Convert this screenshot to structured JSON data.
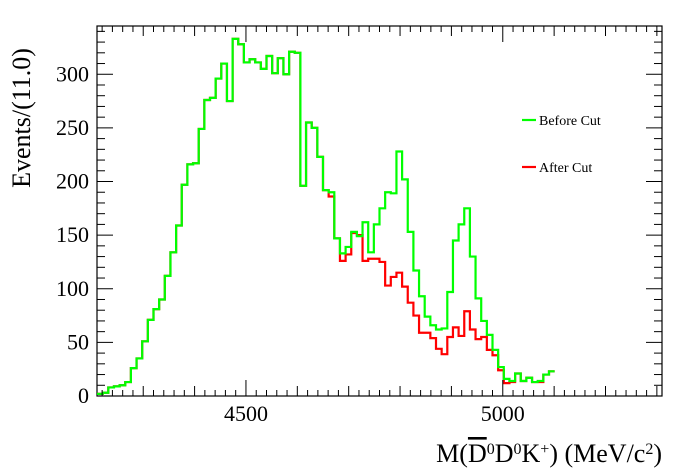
{
  "chart_data": {
    "type": "line",
    "ylabel": "Events/(11.0)",
    "xlabel_parts": {
      "prefix": "M(",
      "bar_symbol": "D",
      "bar_sup": "0",
      "sym2": "D",
      "sym2_sup": "0",
      "sym3": "K",
      "sym3_sup": "+",
      "suffix": ") (MeV/c",
      "unit_sup": "2",
      "close": ")"
    },
    "xlim": [
      4210,
      5310
    ],
    "ylim": [
      0,
      345
    ],
    "x_ticks": [
      4500,
      5000
    ],
    "y_ticks": [
      0,
      50,
      100,
      150,
      200,
      250,
      300
    ],
    "bin_width": 11.0,
    "legend_position": "right",
    "series": [
      {
        "name": "Before Cut",
        "color": "#00ff00",
        "values": [
          2,
          3,
          8,
          9,
          10,
          13,
          26,
          35,
          51,
          71,
          81,
          90,
          112,
          134,
          159,
          197,
          216,
          217,
          249,
          276,
          278,
          296,
          310,
          275,
          333,
          328,
          311,
          314,
          311,
          305,
          317,
          301,
          315,
          300,
          321,
          320,
          196,
          255,
          250,
          223,
          192,
          190,
          147,
          133,
          139,
          153,
          149,
          162,
          134,
          160,
          175,
          190,
          189,
          228,
          202,
          153,
          117,
          93,
          74,
          66,
          62,
          63,
          97,
          145,
          160,
          175,
          130,
          91,
          70,
          57,
          43,
          27,
          16,
          14,
          21,
          14,
          17,
          13,
          14,
          20,
          23
        ],
        "x_start": 4210
      },
      {
        "name": "After Cut",
        "color": "#ff0000",
        "values": [
          2,
          3,
          8,
          9,
          10,
          13,
          26,
          35,
          51,
          71,
          81,
          90,
          112,
          134,
          159,
          197,
          216,
          217,
          249,
          276,
          278,
          296,
          310,
          275,
          333,
          328,
          311,
          314,
          311,
          305,
          317,
          301,
          315,
          300,
          321,
          320,
          196,
          255,
          250,
          223,
          192,
          186,
          147,
          126,
          132,
          152,
          150,
          126,
          128,
          128,
          125,
          103,
          111,
          115,
          102,
          87,
          75,
          59,
          59,
          54,
          44,
          39,
          55,
          64,
          56,
          79,
          62,
          53,
          55,
          43,
          38,
          24,
          12,
          13,
          21,
          14,
          17,
          13,
          13,
          20,
          23
        ],
        "x_start": 4210
      }
    ]
  }
}
